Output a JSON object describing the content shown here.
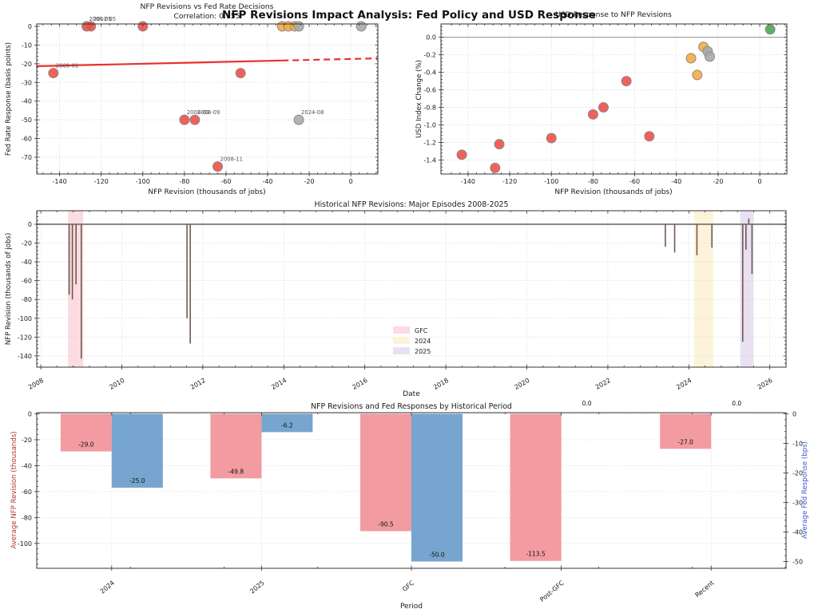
{
  "figure": {
    "suptitle": "NFP Revisions Impact Analysis: Fed Policy and USD Response"
  },
  "palette": {
    "red": "#f04b42",
    "orange": "#f6a83c",
    "gray": "#a8a8a8",
    "green": "#48a44b",
    "point_edge": "#8a8a8a",
    "trend": "#e8312f",
    "pink_bar": "#f29ba1",
    "blue_bar": "#76a5cf",
    "band_gfc": "#fcdce1",
    "band_2024": "#fdf3da",
    "band_2025": "#e9e0f2",
    "timeline_bar": "#6f5a52",
    "grid": "#cdcdcd",
    "spine": "#333333",
    "zero_line": "#7f7f7f",
    "left_axis_label": "#b03a2e",
    "right_axis_label": "#3b5bcc",
    "annotation": "#555555",
    "tick_text": "#1a1a1a"
  },
  "chart_data": [
    {
      "id": "fed_scatter",
      "type": "scatter",
      "title": "NFP Revisions vs Fed Rate Decisions",
      "subtitle": "Correlation: 0.155",
      "xlabel": "NFP Revision (thousands of jobs)",
      "ylabel": "Fed Rate Response (basis points)",
      "xlim": [
        -151,
        13
      ],
      "ylim": [
        -79,
        1.3
      ],
      "xticks": [
        -140,
        -120,
        -100,
        -80,
        -60,
        -40,
        -20,
        0
      ],
      "yticks": [
        0,
        -10,
        -20,
        -30,
        -40,
        -50,
        -60,
        -70
      ],
      "points": [
        {
          "x": -143,
          "y": -25,
          "color": "red",
          "label": "2009-01"
        },
        {
          "x": -127,
          "y": 0,
          "color": "red",
          "label": "2008-05"
        },
        {
          "x": -125,
          "y": 0,
          "color": "red",
          "label": "2012-05"
        },
        {
          "x": -100,
          "y": 0,
          "color": "red"
        },
        {
          "x": -80,
          "y": -50,
          "color": "red",
          "label": "2008-03"
        },
        {
          "x": -75,
          "y": -50,
          "color": "red",
          "label": "2008-09"
        },
        {
          "x": -64,
          "y": -75,
          "color": "red",
          "label": "2008-11"
        },
        {
          "x": -53,
          "y": -25,
          "color": "red"
        },
        {
          "x": -33,
          "y": 0,
          "color": "orange"
        },
        {
          "x": -30,
          "y": 0,
          "color": "orange"
        },
        {
          "x": -27,
          "y": 0,
          "color": "orange"
        },
        {
          "x": -25,
          "y": 0,
          "color": "gray"
        },
        {
          "x": -25,
          "y": -50,
          "color": "gray",
          "label": "2024-08"
        },
        {
          "x": 5,
          "y": 0,
          "color": "gray"
        }
      ],
      "trend": {
        "x_start": -151,
        "y_start": -21.3,
        "x_end": 13,
        "y_end": -17.1,
        "dash_from": -33
      }
    },
    {
      "id": "usd_scatter",
      "type": "scatter",
      "title": "USD Response to NFP Revisions",
      "xlabel": "NFP Revision (thousands of jobs)",
      "ylabel": "USD Index Change (%)",
      "xlim": [
        -153,
        13
      ],
      "ylim": [
        -1.56,
        0.152
      ],
      "xticks": [
        -140,
        -120,
        -100,
        -80,
        -60,
        -40,
        -20,
        0
      ],
      "yticks": [
        0.0,
        -0.2,
        -0.4,
        -0.6,
        -0.8,
        -1.0,
        -1.2,
        -1.4
      ],
      "zero_line": true,
      "points": [
        {
          "x": -143,
          "y": -1.34,
          "color": "red"
        },
        {
          "x": -127,
          "y": -1.49,
          "color": "red"
        },
        {
          "x": -125,
          "y": -1.22,
          "color": "red"
        },
        {
          "x": -100,
          "y": -1.15,
          "color": "red"
        },
        {
          "x": -80,
          "y": -0.88,
          "color": "red"
        },
        {
          "x": -75,
          "y": -0.8,
          "color": "red"
        },
        {
          "x": -64,
          "y": -0.5,
          "color": "red"
        },
        {
          "x": -53,
          "y": -1.13,
          "color": "red"
        },
        {
          "x": -33,
          "y": -0.24,
          "color": "orange"
        },
        {
          "x": -30,
          "y": -0.43,
          "color": "orange"
        },
        {
          "x": -27,
          "y": -0.11,
          "color": "orange"
        },
        {
          "x": -25,
          "y": -0.16,
          "color": "gray"
        },
        {
          "x": -24,
          "y": -0.22,
          "color": "gray"
        },
        {
          "x": 5,
          "y": 0.09,
          "color": "green"
        }
      ]
    },
    {
      "id": "timeline",
      "type": "bar",
      "title": "Historical NFP Revisions: Major Episodes 2008-2025",
      "xlabel": "Date",
      "ylabel": "NFP Revision (thousands of jobs)",
      "xlim": [
        2007.9,
        2026.4
      ],
      "ylim": [
        -152,
        14.4
      ],
      "xticks": [
        2008,
        2010,
        2012,
        2014,
        2016,
        2018,
        2020,
        2022,
        2024,
        2026
      ],
      "yticks": [
        0,
        -20,
        -40,
        -60,
        -80,
        -100,
        -120,
        -140
      ],
      "bars": [
        {
          "year": 2008.7,
          "value": -75
        },
        {
          "year": 2008.78,
          "value": -80
        },
        {
          "year": 2008.87,
          "value": -64
        },
        {
          "year": 2009.0,
          "value": -143
        },
        {
          "year": 2011.61,
          "value": -100
        },
        {
          "year": 2011.69,
          "value": -127
        },
        {
          "year": 2023.42,
          "value": -24
        },
        {
          "year": 2023.65,
          "value": -30
        },
        {
          "year": 2024.2,
          "value": -33
        },
        {
          "year": 2024.57,
          "value": -25
        },
        {
          "year": 2025.33,
          "value": -125
        },
        {
          "year": 2025.41,
          "value": -27
        },
        {
          "year": 2025.48,
          "value": 6
        },
        {
          "year": 2025.56,
          "value": -53
        }
      ],
      "bands": [
        {
          "start": 2008.67,
          "end": 2009.05,
          "color_key": "band_gfc",
          "label": "GFC"
        },
        {
          "start": 2024.13,
          "end": 2024.6,
          "color_key": "band_2024",
          "label": "2024"
        },
        {
          "start": 2025.27,
          "end": 2025.6,
          "color_key": "band_2025",
          "label": "2025"
        }
      ],
      "legend": [
        {
          "label": "GFC",
          "color_key": "band_gfc"
        },
        {
          "label": "2024",
          "color_key": "band_2024"
        },
        {
          "label": "2025",
          "color_key": "band_2025"
        }
      ]
    },
    {
      "id": "period_bars",
      "type": "bar",
      "title": "NFP Revisions and Fed Responses by Historical Period",
      "xlabel": "Period",
      "ylabel_left": "Average NFP Revision (thousands)",
      "ylabel_right": "Average Fed Response (bps)",
      "categories": [
        "2024",
        "2025",
        "GFC",
        "Post-GFC",
        "Recent"
      ],
      "series": [
        {
          "name": "Average NFP Revision (thousands)",
          "axis": "left",
          "color_key": "pink_bar",
          "values": [
            -29.0,
            -49.8,
            -90.5,
            -113.5,
            -27.0
          ]
        },
        {
          "name": "Average Fed Response (bps)",
          "axis": "right",
          "color_key": "blue_bar",
          "values": [
            -25.0,
            -6.2,
            -50.0,
            0.0,
            0.0
          ]
        }
      ],
      "yticks_left": [
        0,
        -20,
        -40,
        -60,
        -80,
        -100
      ],
      "yticks_right": [
        0,
        -10,
        -20,
        -30,
        -40,
        -50
      ],
      "ylim_left": [
        -119.2,
        0.9
      ],
      "ylim_right": [
        -52.3,
        0.4
      ]
    }
  ]
}
